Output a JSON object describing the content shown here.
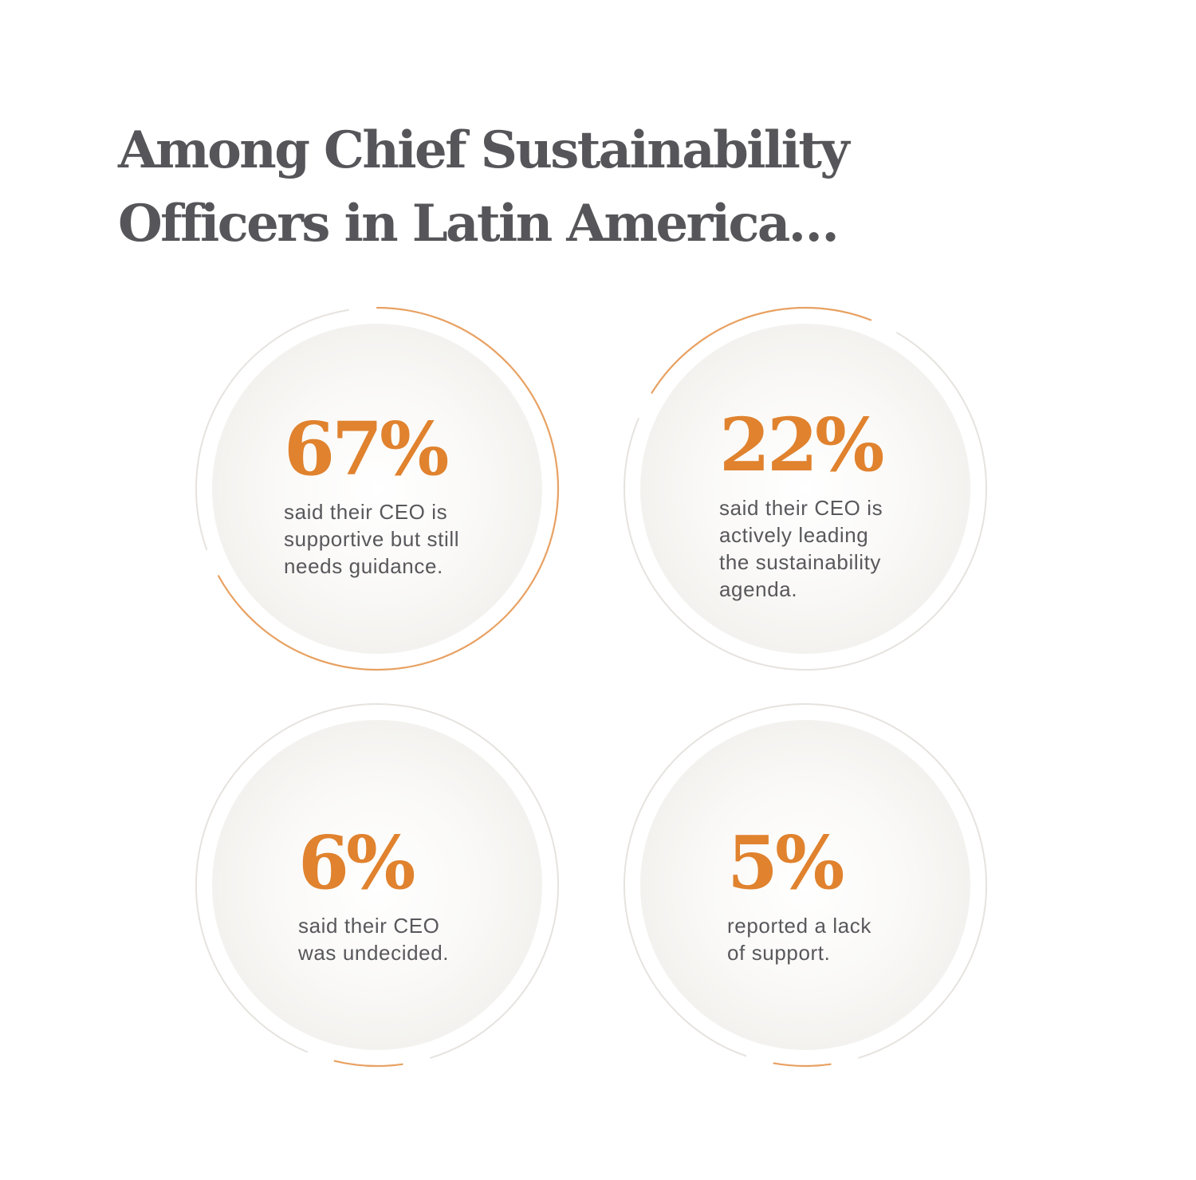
{
  "title_lines": [
    "Among Chief Sustainability",
    "Officers in Latin America…"
  ],
  "colors": {
    "accent": "#e0822e",
    "title": "#56565a",
    "text": "#58585c",
    "ring": "#e6e3df",
    "disc": "#f6f5f3"
  },
  "chart_data": {
    "type": "radial-stat",
    "unit": "%",
    "items": [
      {
        "value": "67%",
        "percent": 67,
        "desc_lines": [
          "said their CEO is",
          "supportive but still",
          "needs guidance."
        ]
      },
      {
        "value": "22%",
        "percent": 22,
        "desc_lines": [
          "said their CEO is",
          "actively leading",
          "the sustainability",
          "agenda."
        ]
      },
      {
        "value": "6%",
        "percent": 6,
        "desc_lines": [
          "said their CEO",
          "was undecided."
        ]
      },
      {
        "value": "5%",
        "percent": 5,
        "desc_lines": [
          "reported a lack",
          "of support."
        ]
      }
    ]
  }
}
